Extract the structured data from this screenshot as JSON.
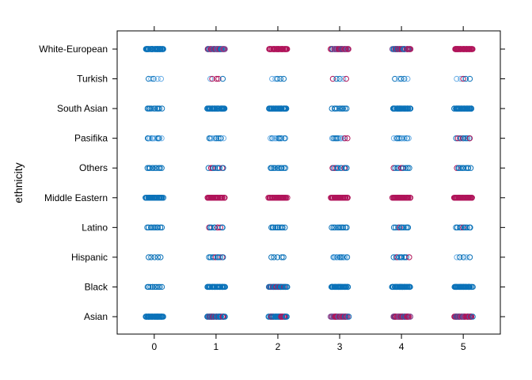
{
  "chart_data": {
    "type": "scatter",
    "title": "",
    "xlabel": "",
    "ylabel": "ethnicity",
    "x_ticks": [
      0,
      1,
      2,
      3,
      4,
      5
    ],
    "xlim": [
      -0.6,
      5.6
    ],
    "categories": [
      "Asian",
      "Black",
      "Hispanic",
      "Latino",
      "Middle Eastern",
      "Others",
      "Pasifika",
      "South Asian",
      "Turkish",
      "White-European"
    ],
    "grid": false,
    "legend": "none",
    "colors": {
      "blue": "#0b72b9",
      "magenta": "#b0145a",
      "lightblue": "#6aaee6",
      "purple": "#7a4f9a"
    },
    "rows": [
      {
        "category": "Asian",
        "counts": [
          {
            "x": 0,
            "n": "dense",
            "mix": "blue"
          },
          {
            "x": 1,
            "n": "dense",
            "mix": "blue-mag"
          },
          {
            "x": 2,
            "n": "dense",
            "mix": "blue-mag"
          },
          {
            "x": 3,
            "n": "dense",
            "mix": "mag-blue"
          },
          {
            "x": 4,
            "n": "dense",
            "mix": "mag-blue"
          },
          {
            "x": 5,
            "n": "dense",
            "mix": "mag-blue"
          }
        ]
      },
      {
        "category": "Black",
        "counts": [
          {
            "x": 0,
            "n": "medium",
            "mix": "blue"
          },
          {
            "x": 1,
            "n": "dense",
            "mix": "blue"
          },
          {
            "x": 2,
            "n": "dense",
            "mix": "blue-mag"
          },
          {
            "x": 3,
            "n": "dense",
            "mix": "blue"
          },
          {
            "x": 4,
            "n": "dense",
            "mix": "blue"
          },
          {
            "x": 5,
            "n": "dense",
            "mix": "blue"
          }
        ]
      },
      {
        "category": "Hispanic",
        "counts": [
          {
            "x": 0,
            "n": "sparse",
            "mix": "blue"
          },
          {
            "x": 1,
            "n": "medium",
            "mix": "blue-mag"
          },
          {
            "x": 2,
            "n": "sparse",
            "mix": "blue"
          },
          {
            "x": 3,
            "n": "medium",
            "mix": "light"
          },
          {
            "x": 4,
            "n": "medium",
            "mix": "blue-mag"
          },
          {
            "x": 5,
            "n": "sparse",
            "mix": "light"
          }
        ]
      },
      {
        "category": "Latino",
        "counts": [
          {
            "x": 0,
            "n": "medium",
            "mix": "blue"
          },
          {
            "x": 1,
            "n": "medium",
            "mix": "blue-mag"
          },
          {
            "x": 2,
            "n": "medium",
            "mix": "blue"
          },
          {
            "x": 3,
            "n": "medium",
            "mix": "blue"
          },
          {
            "x": 4,
            "n": "medium",
            "mix": "blue-mag"
          },
          {
            "x": 5,
            "n": "medium",
            "mix": "blue-mag"
          }
        ]
      },
      {
        "category": "Middle Eastern",
        "counts": [
          {
            "x": 0,
            "n": "dense",
            "mix": "blue"
          },
          {
            "x": 1,
            "n": "dense",
            "mix": "magenta"
          },
          {
            "x": 2,
            "n": "dense",
            "mix": "magenta"
          },
          {
            "x": 3,
            "n": "dense",
            "mix": "magenta"
          },
          {
            "x": 4,
            "n": "dense",
            "mix": "magenta"
          },
          {
            "x": 5,
            "n": "dense",
            "mix": "magenta"
          }
        ]
      },
      {
        "category": "Others",
        "counts": [
          {
            "x": 0,
            "n": "medium",
            "mix": "blue"
          },
          {
            "x": 1,
            "n": "medium",
            "mix": "blue-mag"
          },
          {
            "x": 2,
            "n": "medium",
            "mix": "blue"
          },
          {
            "x": 3,
            "n": "medium",
            "mix": "blue-mag"
          },
          {
            "x": 4,
            "n": "medium",
            "mix": "blue-mag"
          },
          {
            "x": 5,
            "n": "medium",
            "mix": "blue-mag"
          }
        ]
      },
      {
        "category": "Pasifika",
        "counts": [
          {
            "x": 0,
            "n": "medium",
            "mix": "light"
          },
          {
            "x": 1,
            "n": "medium",
            "mix": "light"
          },
          {
            "x": 2,
            "n": "medium",
            "mix": "light"
          },
          {
            "x": 3,
            "n": "medium",
            "mix": "light-mag"
          },
          {
            "x": 4,
            "n": "medium",
            "mix": "light"
          },
          {
            "x": 5,
            "n": "medium",
            "mix": "blue-mag"
          }
        ]
      },
      {
        "category": "South Asian",
        "counts": [
          {
            "x": 0,
            "n": "medium",
            "mix": "blue"
          },
          {
            "x": 1,
            "n": "dense",
            "mix": "blue"
          },
          {
            "x": 2,
            "n": "dense",
            "mix": "blue"
          },
          {
            "x": 3,
            "n": "medium",
            "mix": "blue"
          },
          {
            "x": 4,
            "n": "dense",
            "mix": "blue"
          },
          {
            "x": 5,
            "n": "dense",
            "mix": "blue"
          }
        ]
      },
      {
        "category": "Turkish",
        "counts": [
          {
            "x": 0,
            "n": "sparse",
            "mix": "light"
          },
          {
            "x": 1,
            "n": "sparse",
            "mix": "light-mag"
          },
          {
            "x": 2,
            "n": "sparse",
            "mix": "light"
          },
          {
            "x": 3,
            "n": "sparse",
            "mix": "light-mag"
          },
          {
            "x": 4,
            "n": "sparse",
            "mix": "light-mag"
          },
          {
            "x": 5,
            "n": "sparse",
            "mix": "light-mag"
          }
        ]
      },
      {
        "category": "White-European",
        "counts": [
          {
            "x": 0,
            "n": "dense",
            "mix": "blue"
          },
          {
            "x": 1,
            "n": "dense",
            "mix": "mag-blue"
          },
          {
            "x": 2,
            "n": "dense",
            "mix": "magenta"
          },
          {
            "x": 3,
            "n": "dense",
            "mix": "mag-blue"
          },
          {
            "x": 4,
            "n": "dense",
            "mix": "mag-blue"
          },
          {
            "x": 5,
            "n": "dense",
            "mix": "magenta"
          }
        ]
      }
    ]
  }
}
